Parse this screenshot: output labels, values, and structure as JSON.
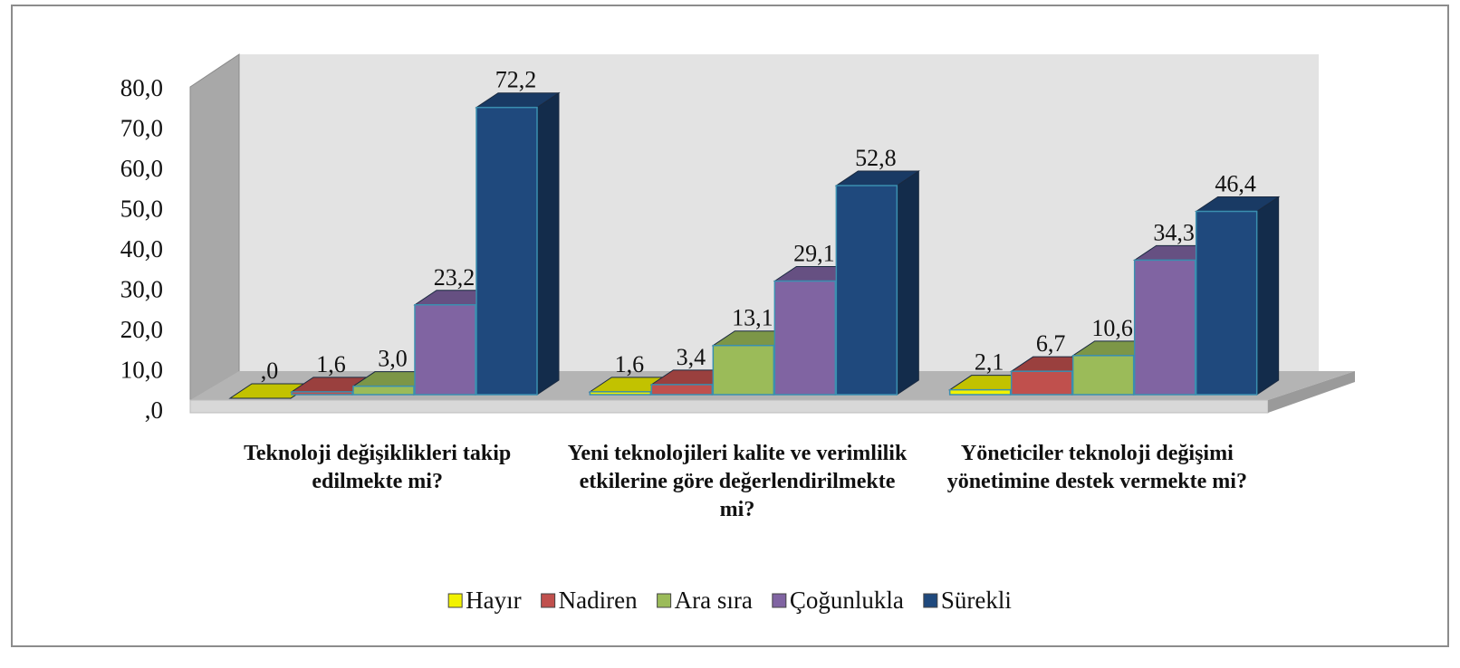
{
  "chart_data": {
    "type": "bar3d",
    "categories": [
      "Teknoloji değişiklikleri takip edilmekte mi?",
      "Yeni teknolojileri kalite ve verimlilik etkilerine göre değerlendirilmekte mi?",
      "Yöneticiler teknoloji değişimi yönetimine destek vermekte mi?"
    ],
    "series": [
      {
        "name": "Hayır",
        "color": "#f2f200",
        "values": [
          0,
          1.6,
          2.1
        ],
        "value_labels": [
          ",0",
          "1,6",
          "2,1"
        ]
      },
      {
        "name": "Nadiren",
        "color": "#c0504d",
        "values": [
          1.6,
          3.4,
          6.7
        ],
        "value_labels": [
          "1,6",
          "3,4",
          "6,7"
        ]
      },
      {
        "name": "Ara sıra",
        "color": "#9bbb59",
        "values": [
          3.0,
          13.1,
          10.6
        ],
        "value_labels": [
          "3,0",
          "13,1",
          "10,6"
        ]
      },
      {
        "name": "Çoğunlukla",
        "color": "#8064a2",
        "values": [
          23.2,
          29.1,
          34.3
        ],
        "value_labels": [
          "23,2",
          "29,1",
          "34,3"
        ]
      },
      {
        "name": "Sürekli",
        "color": "#1f497d",
        "values": [
          72.2,
          52.8,
          46.4
        ],
        "value_labels": [
          "72,2",
          "52,8",
          "46,4"
        ]
      }
    ],
    "ylim": [
      0,
      80
    ],
    "yticks": [
      {
        "value": 0,
        "label": ",0"
      },
      {
        "value": 10,
        "label": "10,0"
      },
      {
        "value": 20,
        "label": "20,0"
      },
      {
        "value": 30,
        "label": "30,0"
      },
      {
        "value": 40,
        "label": "40,0"
      },
      {
        "value": 50,
        "label": "50,0"
      },
      {
        "value": 60,
        "label": "60,0"
      },
      {
        "value": 70,
        "label": "70,0"
      },
      {
        "value": 80,
        "label": "80,0"
      }
    ],
    "grid": false,
    "legend": "bottom"
  }
}
